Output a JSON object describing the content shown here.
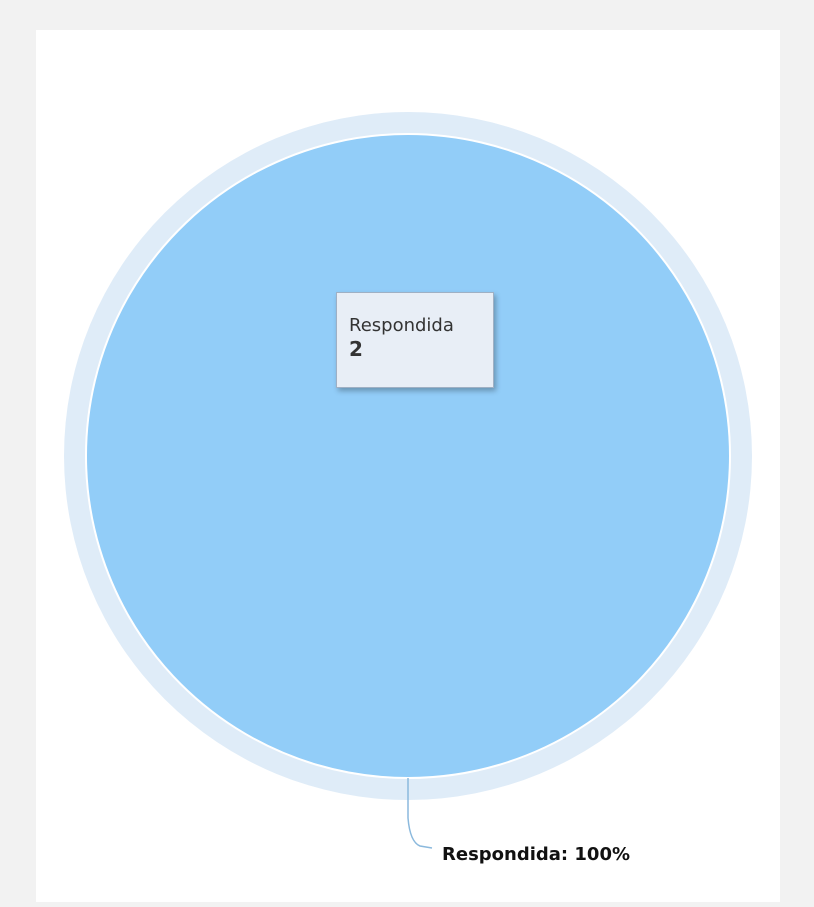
{
  "chart_data": {
    "type": "pie",
    "categories": [
      "Respondida"
    ],
    "values": [
      2
    ],
    "data_labels": [
      "Respondida: 100%"
    ],
    "tooltip": {
      "name": "Respondida",
      "value": "2"
    },
    "colors": {
      "slice": "#92cdf8",
      "halo": "#dfecf8",
      "connector": "#8bb9dd"
    },
    "legend": "none",
    "title": ""
  }
}
